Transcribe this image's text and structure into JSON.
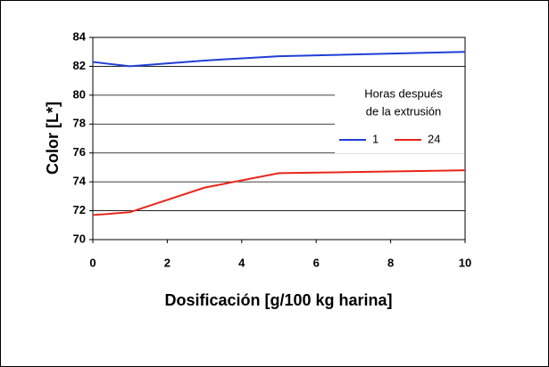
{
  "chart_data": {
    "type": "line",
    "x_label": "Dosificación [g/100 kg harina]",
    "y_label": "Color [L*]",
    "legend_title": [
      "Horas después",
      "de la extrusión"
    ],
    "x": [
      0,
      1,
      3,
      5,
      10
    ],
    "series": [
      {
        "name": "1",
        "color": "#1f3fd6",
        "values": [
          82.3,
          82.0,
          82.4,
          82.7,
          83.0
        ]
      },
      {
        "name": "24",
        "color": "#e8251a",
        "values": [
          71.7,
          71.9,
          73.6,
          74.6,
          74.8
        ]
      }
    ],
    "xlim": [
      0,
      10
    ],
    "xticks": [
      0,
      2,
      4,
      6,
      8,
      10
    ],
    "ylim": [
      70,
      84
    ],
    "yticks": [
      70,
      72,
      74,
      76,
      78,
      80,
      82,
      84
    ],
    "grid": true,
    "legend": "right"
  }
}
